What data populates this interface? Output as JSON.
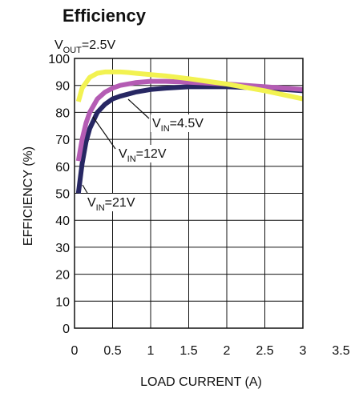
{
  "chart_data": {
    "type": "line",
    "title": "Efficiency",
    "condition": {
      "prefix": "V",
      "sub": "OUT",
      "suffix": "=2.5V"
    },
    "xlabel": "LOAD CURRENT (A)",
    "ylabel": "EFFICIENCY (%)",
    "xlim": [
      0,
      3.5
    ],
    "ylim": [
      0,
      100
    ],
    "xticks": [
      "0",
      "0.5",
      "1",
      "1.5",
      "2",
      "2.5",
      "3",
      "3.5"
    ],
    "yticks": [
      "0",
      "10",
      "20",
      "30",
      "40",
      "50",
      "60",
      "70",
      "80",
      "90",
      "100"
    ],
    "grid": true,
    "series": [
      {
        "color": "#f2f251",
        "label": {
          "prefix": "V",
          "sub": "IN",
          "suffix": "=4.5V"
        },
        "x": [
          0.05,
          0.1,
          0.2,
          0.3,
          0.4,
          0.5,
          0.6,
          0.7,
          0.8,
          1.0,
          1.2,
          1.5,
          2.0,
          2.5,
          3.0
        ],
        "y": [
          84,
          89,
          93,
          94.5,
          95,
          95,
          95,
          94.8,
          94.5,
          94,
          93.5,
          92.5,
          90.5,
          88,
          85
        ]
      },
      {
        "color": "#b45cb4",
        "label": {
          "prefix": "V",
          "sub": "IN",
          "suffix": "=12V"
        },
        "x": [
          0.05,
          0.1,
          0.15,
          0.2,
          0.3,
          0.4,
          0.5,
          0.6,
          0.8,
          1.0,
          1.2,
          1.5,
          2.0,
          2.5,
          3.0
        ],
        "y": [
          62,
          70,
          76,
          80,
          85,
          87.5,
          89,
          90,
          91,
          91.5,
          91.5,
          91.2,
          90.5,
          89.5,
          88.5
        ]
      },
      {
        "color": "#272763",
        "label": {
          "prefix": "V",
          "sub": "IN",
          "suffix": "=21V"
        },
        "x": [
          0.05,
          0.1,
          0.15,
          0.2,
          0.3,
          0.4,
          0.5,
          0.6,
          0.8,
          1.0,
          1.2,
          1.5,
          2.0,
          2.5,
          3.0
        ],
        "y": [
          50,
          61,
          69,
          74,
          80,
          83,
          85,
          86,
          87.5,
          88.5,
          89,
          89.5,
          89.5,
          89,
          88
        ]
      }
    ]
  }
}
